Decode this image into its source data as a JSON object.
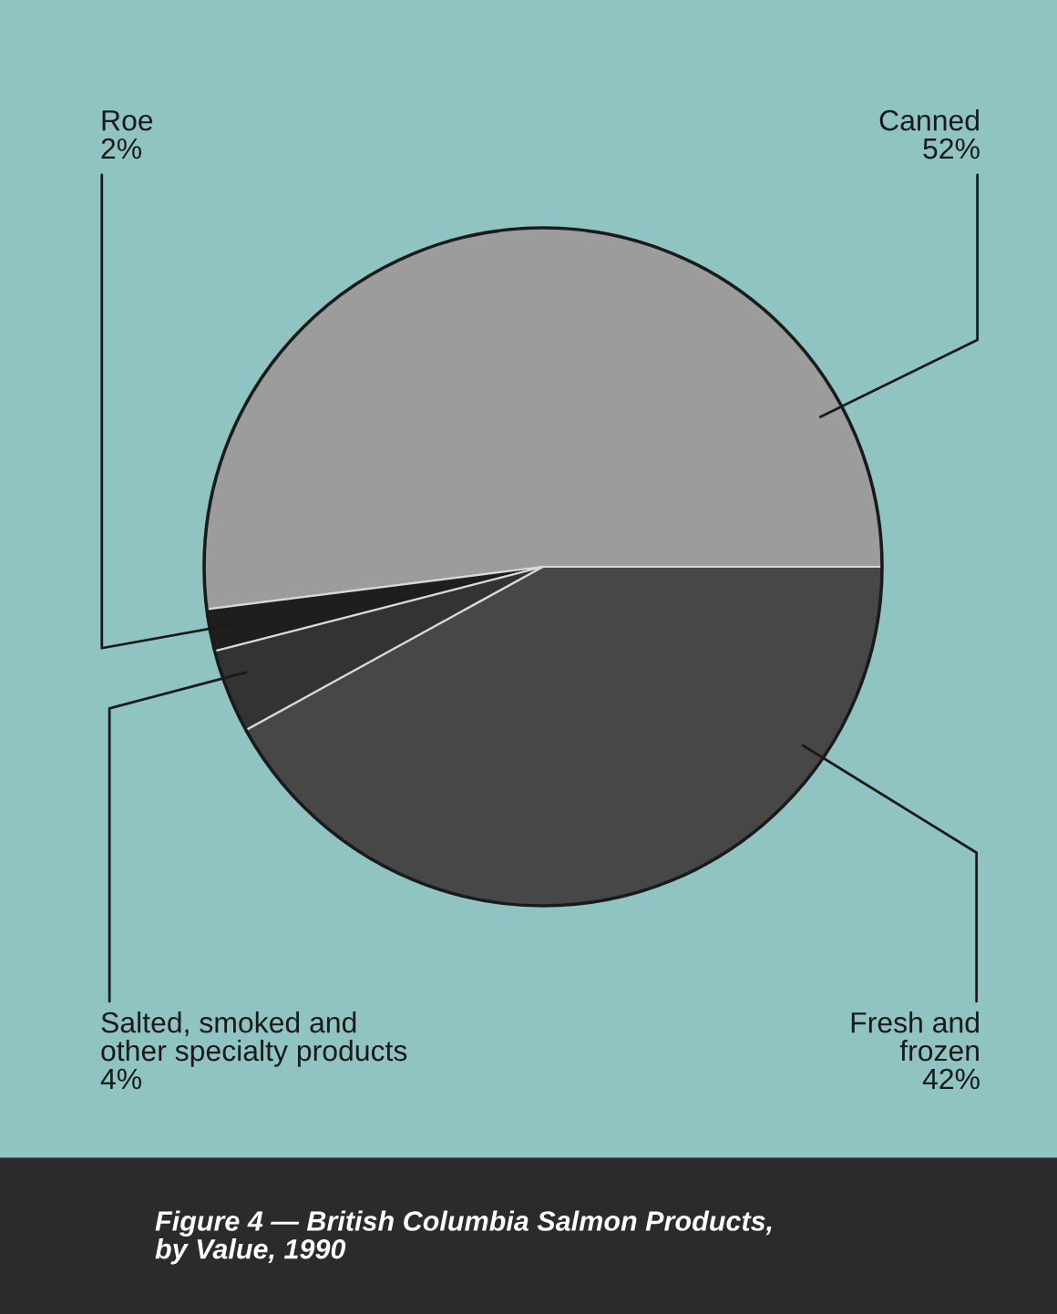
{
  "chart_data": {
    "type": "pie",
    "title": "Figure 4 — British Columbia Salmon Products,\nby Value, 1990",
    "categories": [
      "Canned",
      "Roe",
      "Salted, smoked and\nother specialty products",
      "Fresh and\nfrozen"
    ],
    "values": [
      52,
      2,
      4,
      42
    ],
    "value_labels": [
      "52%",
      "2%",
      "4%",
      "42%"
    ],
    "colors": [
      "#9c9c9c",
      "#1e1e1e",
      "#333333",
      "#474747"
    ]
  }
}
